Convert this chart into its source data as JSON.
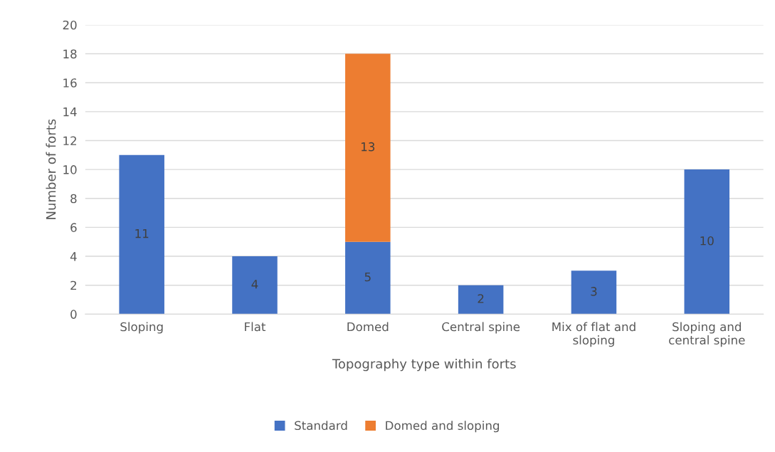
{
  "chart_data": {
    "type": "bar",
    "stacked": true,
    "categories": [
      "Sloping",
      "Flat",
      "Domed",
      "Central spine",
      "Mix of flat and\nsloping",
      "Sloping and\ncentral spine"
    ],
    "series": [
      {
        "name": "Standard",
        "color": "#4472c4",
        "values": [
          11,
          4,
          5,
          2,
          3,
          10
        ]
      },
      {
        "name": "Domed and sloping",
        "color": "#ed7d31",
        "values": [
          null,
          null,
          13,
          null,
          null,
          null
        ]
      }
    ],
    "xlabel": "Topography type within forts",
    "ylabel": "Number of forts",
    "ylim": [
      0,
      20
    ],
    "yticks": [
      0,
      2,
      4,
      6,
      8,
      10,
      12,
      14,
      16,
      18,
      20
    ],
    "grid": "y",
    "legend": "bottom",
    "data_labels": true
  }
}
